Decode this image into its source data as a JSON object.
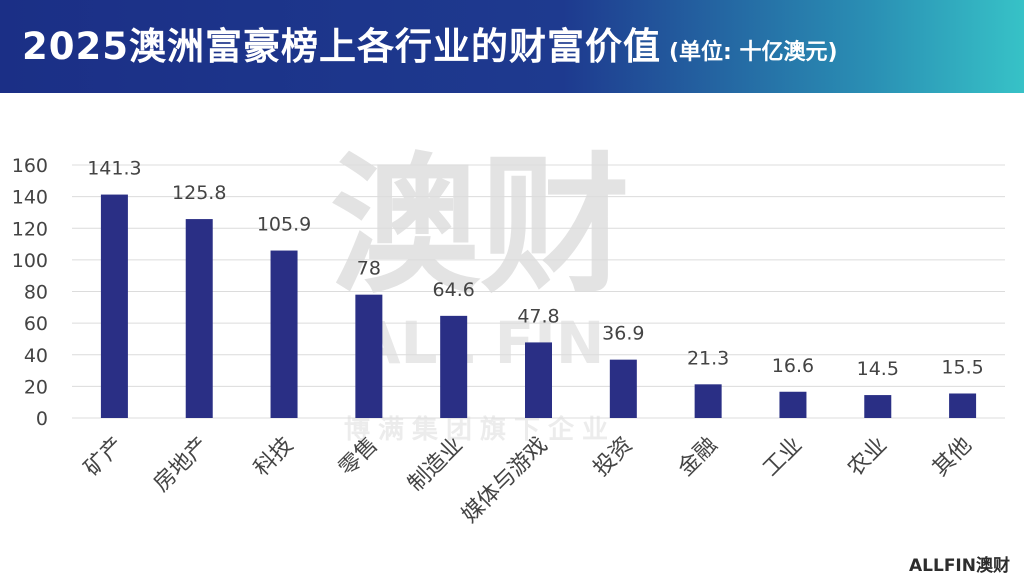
{
  "header": {
    "title": "2025澳洲富豪榜上各行业的财富价值",
    "unit": "(单位: 十亿澳元)"
  },
  "watermark": {
    "big": "澳财",
    "en": "ALL FIN",
    "sub": "博满集团旗下企业"
  },
  "logo": {
    "text": "ALLFIN澳财"
  },
  "colors": {
    "bar": "#2a2f85",
    "header_start": "#1b2f86",
    "header_end": "#37c2c7"
  },
  "chart_data": {
    "type": "bar",
    "title": "2025澳洲富豪榜上各行业的财富价值",
    "categories": [
      "矿产",
      "房地产",
      "科技",
      "零售",
      "制造业",
      "媒体与游戏",
      "投资",
      "金融",
      "工业",
      "农业",
      "其他"
    ],
    "values": [
      141.3,
      125.8,
      105.9,
      78,
      64.6,
      47.8,
      36.9,
      21.3,
      16.6,
      14.5,
      15.5
    ],
    "value_labels": [
      "141.3",
      "125.8",
      "105.9",
      "78",
      "64.6",
      "47.8",
      "36.9",
      "21.3",
      "16.6",
      "14.5",
      "15.5"
    ],
    "yticks": [
      0,
      20,
      40,
      60,
      80,
      100,
      120,
      140,
      160
    ],
    "ylim": [
      0,
      160
    ],
    "grid": true,
    "legend": "none",
    "xlabel": "",
    "ylabel": ""
  }
}
